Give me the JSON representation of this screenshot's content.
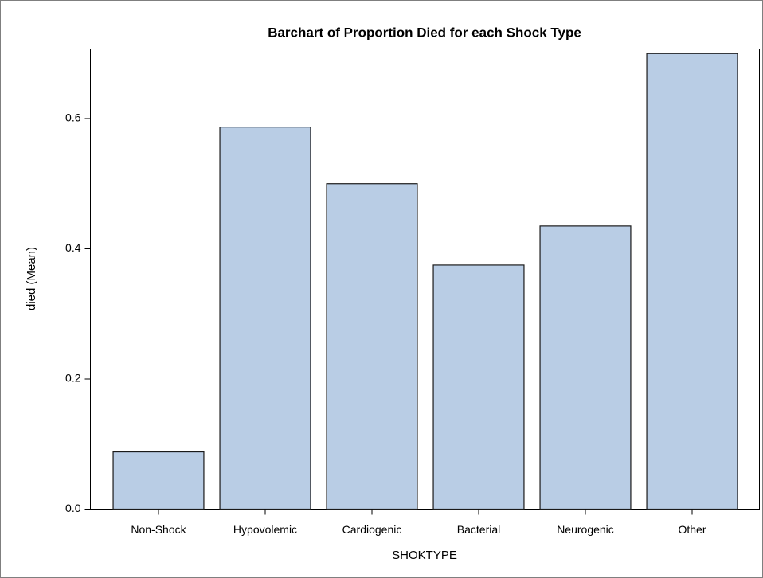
{
  "chart_data": {
    "type": "bar",
    "title": "Barchart of Proportion Died for each Shock Type",
    "x_label": "SHOKTYPE",
    "y_label": "died (Mean)",
    "categories": [
      "Non-Shock",
      "Hypovolemic",
      "Cardiogenic",
      "Bacterial",
      "Neurogenic",
      "Other"
    ],
    "values": [
      0.088,
      0.587,
      0.5,
      0.375,
      0.435,
      0.7
    ],
    "color": "#b9cde5",
    "ylim": [
      0,
      0.707
    ],
    "yticks": [
      {
        "value": 0,
        "label": "0.0"
      },
      0.2,
      0.4,
      0.6
    ],
    "grid": false
  }
}
